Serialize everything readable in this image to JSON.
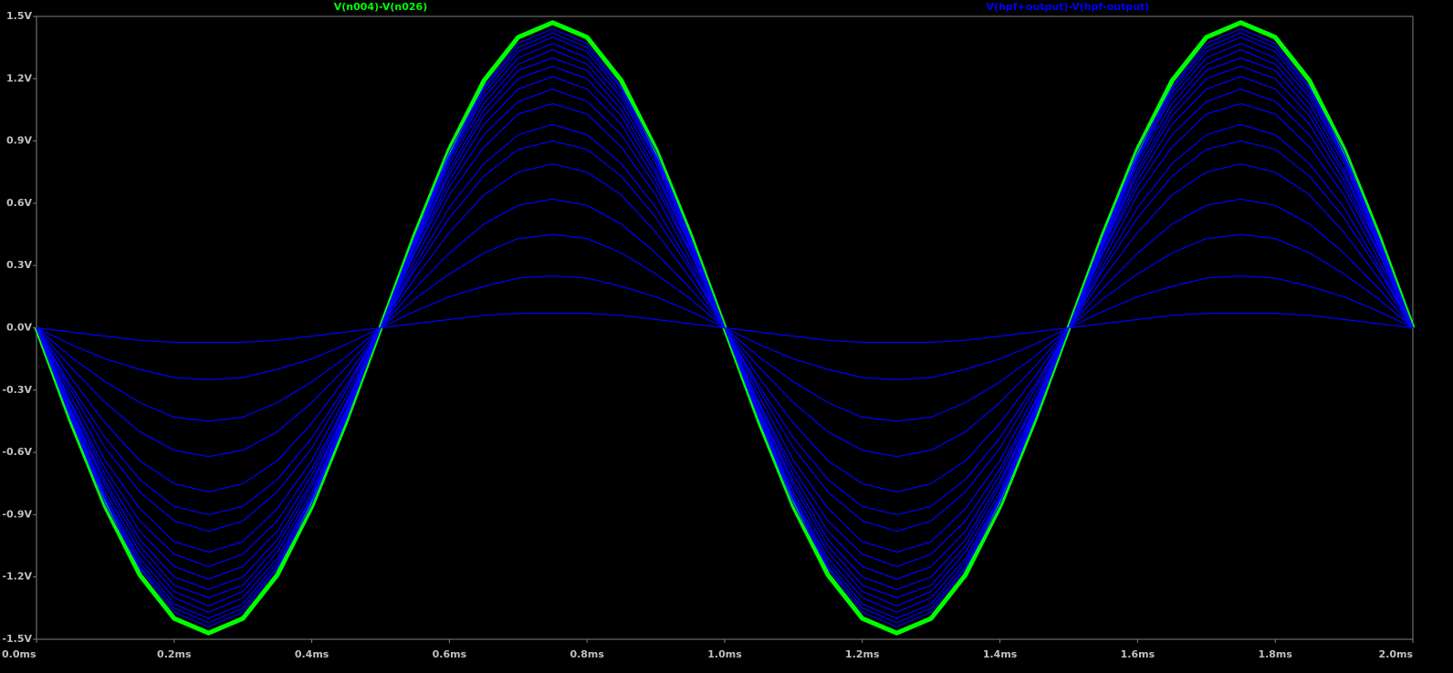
{
  "chart_data": {
    "type": "line",
    "x": [
      0,
      0.05,
      0.1,
      0.15,
      0.2,
      0.25,
      0.3,
      0.35,
      0.4,
      0.45,
      0.5,
      0.55,
      0.6,
      0.65,
      0.7,
      0.75,
      0.8,
      0.85,
      0.9,
      0.95,
      1.0,
      1.05,
      1.1,
      1.15,
      1.2,
      1.25,
      1.3,
      1.35,
      1.4,
      1.45,
      1.5,
      1.55,
      1.6,
      1.65,
      1.7,
      1.75,
      1.8,
      1.85,
      1.9,
      1.95,
      2.0
    ],
    "xlim": [
      0,
      2
    ],
    "xticks": [
      {
        "value": 0,
        "label": "0.0ms"
      },
      {
        "value": 0.2,
        "label": "0.2ms"
      },
      {
        "value": 0.4,
        "label": "0.4ms"
      },
      {
        "value": 0.6,
        "label": "0.6ms"
      },
      {
        "value": 0.8,
        "label": "0.8ms"
      },
      {
        "value": 1.0,
        "label": "1.0ms"
      },
      {
        "value": 1.2,
        "label": "1.2ms"
      },
      {
        "value": 1.4,
        "label": "1.4ms"
      },
      {
        "value": 1.6,
        "label": "1.6ms"
      },
      {
        "value": 1.8,
        "label": "1.8ms"
      },
      {
        "value": 2.0,
        "label": "2.0ms"
      }
    ],
    "ylim": [
      -1.5,
      1.5
    ],
    "yticks": [
      {
        "value": 1.5,
        "label": "1.5V"
      },
      {
        "value": 1.2,
        "label": "1.2V"
      },
      {
        "value": 0.9,
        "label": "0.9V"
      },
      {
        "value": 0.6,
        "label": "0.6V"
      },
      {
        "value": 0.3,
        "label": "0.3V"
      },
      {
        "value": 0,
        "label": "0.0V"
      },
      {
        "value": -0.3,
        "label": "-0.3V"
      },
      {
        "value": -0.6,
        "label": "-0.6V"
      },
      {
        "value": -0.9,
        "label": "-0.9V"
      },
      {
        "value": -1.2,
        "label": "-1.2V"
      },
      {
        "value": -1.5,
        "label": "-1.5V"
      }
    ],
    "series": [
      {
        "name": "V(n004)-V(n026)",
        "color": "#00ff00",
        "values": [
          0,
          -0.45,
          -0.86,
          -1.19,
          -1.4,
          -1.47,
          -1.4,
          -1.19,
          -0.86,
          -0.45,
          0,
          0.45,
          0.86,
          1.19,
          1.4,
          1.47,
          1.4,
          1.19,
          0.86,
          0.45,
          0,
          -0.45,
          -0.86,
          -1.19,
          -1.4,
          -1.47,
          -1.4,
          -1.19,
          -0.86,
          -0.45,
          0,
          0.45,
          0.86,
          1.19,
          1.4,
          1.47,
          1.4,
          1.19,
          0.86,
          0.45,
          0
        ]
      },
      {
        "name": "V(hpf+output)-V(hpf-output)",
        "color": "#0000ff",
        "runs": [
          [
            0,
            -0.44,
            -0.85,
            -1.16,
            -1.37,
            -1.44,
            -1.37,
            -1.16,
            -0.85,
            -0.44,
            0,
            0.44,
            0.85,
            1.16,
            1.37,
            1.44,
            1.37,
            1.16,
            0.85,
            0.44,
            0,
            -0.44,
            -0.85,
            -1.16,
            -1.37,
            -1.44,
            -1.37,
            -1.16,
            -0.85,
            -0.44,
            0,
            0.44,
            0.85,
            1.16,
            1.37,
            1.44,
            1.37,
            1.16,
            0.85,
            0.44,
            0
          ],
          [
            0,
            -0.44,
            -0.83,
            -1.15,
            -1.35,
            -1.42,
            -1.35,
            -1.15,
            -0.83,
            -0.44,
            0,
            0.44,
            0.83,
            1.15,
            1.35,
            1.42,
            1.35,
            1.15,
            0.83,
            0.44,
            0,
            -0.44,
            -0.83,
            -1.15,
            -1.35,
            -1.42,
            -1.35,
            -1.15,
            -0.83,
            -0.44,
            0,
            0.44,
            0.83,
            1.15,
            1.35,
            1.42,
            1.35,
            1.15,
            0.83,
            0.44,
            0
          ],
          [
            0,
            -0.43,
            -0.82,
            -1.13,
            -1.33,
            -1.4,
            -1.33,
            -1.13,
            -0.82,
            -0.43,
            0,
            0.43,
            0.82,
            1.13,
            1.33,
            1.4,
            1.33,
            1.13,
            0.82,
            0.43,
            0,
            -0.43,
            -0.82,
            -1.13,
            -1.33,
            -1.4,
            -1.33,
            -1.13,
            -0.82,
            -0.43,
            0,
            0.43,
            0.82,
            1.13,
            1.33,
            1.4,
            1.33,
            1.13,
            0.82,
            0.43,
            0
          ],
          [
            0,
            -0.42,
            -0.81,
            -1.11,
            -1.3,
            -1.37,
            -1.3,
            -1.11,
            -0.81,
            -0.42,
            0,
            0.42,
            0.81,
            1.11,
            1.3,
            1.37,
            1.3,
            1.11,
            0.81,
            0.42,
            0,
            -0.42,
            -0.81,
            -1.11,
            -1.3,
            -1.37,
            -1.3,
            -1.11,
            -0.81,
            -0.42,
            0,
            0.42,
            0.81,
            1.11,
            1.3,
            1.37,
            1.3,
            1.11,
            0.81,
            0.42,
            0
          ],
          [
            0,
            -0.41,
            -0.79,
            -1.08,
            -1.27,
            -1.34,
            -1.27,
            -1.08,
            -0.79,
            -0.41,
            0,
            0.41,
            0.79,
            1.08,
            1.27,
            1.34,
            1.27,
            1.08,
            0.79,
            0.41,
            0,
            -0.41,
            -0.79,
            -1.08,
            -1.27,
            -1.34,
            -1.27,
            -1.08,
            -0.79,
            -0.41,
            0,
            0.41,
            0.79,
            1.08,
            1.27,
            1.34,
            1.27,
            1.08,
            0.79,
            0.41,
            0
          ],
          [
            0,
            -0.4,
            -0.76,
            -1.05,
            -1.24,
            -1.3,
            -1.24,
            -1.05,
            -0.76,
            -0.4,
            0,
            0.4,
            0.76,
            1.05,
            1.24,
            1.3,
            1.24,
            1.05,
            0.76,
            0.4,
            0,
            -0.4,
            -0.76,
            -1.05,
            -1.24,
            -1.3,
            -1.24,
            -1.05,
            -0.76,
            -0.4,
            0,
            0.4,
            0.76,
            1.05,
            1.24,
            1.3,
            1.24,
            1.05,
            0.76,
            0.4,
            0
          ],
          [
            0,
            -0.39,
            -0.74,
            -1.02,
            -1.2,
            -1.26,
            -1.2,
            -1.02,
            -0.74,
            -0.39,
            0,
            0.39,
            0.74,
            1.02,
            1.2,
            1.26,
            1.2,
            1.02,
            0.74,
            0.39,
            0,
            -0.39,
            -0.74,
            -1.02,
            -1.2,
            -1.26,
            -1.2,
            -1.02,
            -0.74,
            -0.39,
            0,
            0.39,
            0.74,
            1.02,
            1.2,
            1.26,
            1.2,
            1.02,
            0.74,
            0.39,
            0
          ],
          [
            0,
            -0.37,
            -0.71,
            -0.98,
            -1.15,
            -1.21,
            -1.15,
            -0.98,
            -0.71,
            -0.37,
            0,
            0.37,
            0.71,
            0.98,
            1.15,
            1.21,
            1.15,
            0.98,
            0.71,
            0.37,
            0,
            -0.37,
            -0.71,
            -0.98,
            -1.15,
            -1.21,
            -1.15,
            -0.98,
            -0.71,
            -0.37,
            0,
            0.37,
            0.71,
            0.98,
            1.15,
            1.21,
            1.15,
            0.98,
            0.71,
            0.37,
            0
          ],
          [
            0,
            -0.36,
            -0.68,
            -0.93,
            -1.09,
            -1.15,
            -1.09,
            -0.93,
            -0.68,
            -0.36,
            0,
            0.36,
            0.68,
            0.93,
            1.09,
            1.15,
            1.09,
            0.93,
            0.68,
            0.36,
            0,
            -0.36,
            -0.68,
            -0.93,
            -1.09,
            -1.15,
            -1.09,
            -0.93,
            -0.68,
            -0.36,
            0,
            0.36,
            0.68,
            0.93,
            1.09,
            1.15,
            1.09,
            0.93,
            0.68,
            0.36,
            0
          ],
          [
            0,
            -0.33,
            -0.64,
            -0.87,
            -1.03,
            -1.08,
            -1.03,
            -0.87,
            -0.64,
            -0.33,
            0,
            0.33,
            0.64,
            0.87,
            1.03,
            1.08,
            1.03,
            0.87,
            0.64,
            0.33,
            0,
            -0.33,
            -0.64,
            -0.87,
            -1.03,
            -1.08,
            -1.03,
            -0.87,
            -0.64,
            -0.33,
            0,
            0.33,
            0.64,
            0.87,
            1.03,
            1.08,
            1.03,
            0.87,
            0.64,
            0.33,
            0
          ],
          [
            0,
            -0.3,
            -0.58,
            -0.79,
            -0.93,
            -0.98,
            -0.93,
            -0.79,
            -0.58,
            -0.3,
            0,
            0.3,
            0.58,
            0.79,
            0.93,
            0.98,
            0.93,
            0.79,
            0.58,
            0.3,
            0,
            -0.3,
            -0.58,
            -0.79,
            -0.93,
            -0.98,
            -0.93,
            -0.79,
            -0.58,
            -0.3,
            0,
            0.3,
            0.58,
            0.79,
            0.93,
            0.98,
            0.93,
            0.79,
            0.58,
            0.3,
            0
          ],
          [
            0,
            -0.28,
            -0.53,
            -0.73,
            -0.86,
            -0.9,
            -0.86,
            -0.73,
            -0.53,
            -0.28,
            0,
            0.28,
            0.53,
            0.73,
            0.86,
            0.9,
            0.86,
            0.73,
            0.53,
            0.28,
            0,
            -0.28,
            -0.53,
            -0.73,
            -0.86,
            -0.9,
            -0.86,
            -0.73,
            -0.53,
            -0.28,
            0,
            0.28,
            0.53,
            0.73,
            0.86,
            0.9,
            0.86,
            0.73,
            0.53,
            0.28,
            0
          ],
          [
            0,
            -0.24,
            -0.46,
            -0.64,
            -0.75,
            -0.79,
            -0.75,
            -0.64,
            -0.46,
            -0.24,
            0,
            0.24,
            0.46,
            0.64,
            0.75,
            0.79,
            0.75,
            0.64,
            0.46,
            0.24,
            0,
            -0.24,
            -0.46,
            -0.64,
            -0.75,
            -0.79,
            -0.75,
            -0.64,
            -0.46,
            -0.24,
            0,
            0.24,
            0.46,
            0.64,
            0.75,
            0.79,
            0.75,
            0.64,
            0.46,
            0.24,
            0
          ],
          [
            0,
            -0.19,
            -0.36,
            -0.5,
            -0.59,
            -0.62,
            -0.59,
            -0.5,
            -0.36,
            -0.19,
            0,
            0.19,
            0.36,
            0.5,
            0.59,
            0.62,
            0.59,
            0.5,
            0.36,
            0.19,
            0,
            -0.19,
            -0.36,
            -0.5,
            -0.59,
            -0.62,
            -0.59,
            -0.5,
            -0.36,
            -0.19,
            0,
            0.19,
            0.36,
            0.5,
            0.59,
            0.62,
            0.59,
            0.5,
            0.36,
            0.19,
            0
          ],
          [
            0,
            -0.14,
            -0.26,
            -0.36,
            -0.43,
            -0.45,
            -0.43,
            -0.36,
            -0.26,
            -0.14,
            0,
            0.14,
            0.26,
            0.36,
            0.43,
            0.45,
            0.43,
            0.36,
            0.26,
            0.14,
            0,
            -0.14,
            -0.26,
            -0.36,
            -0.43,
            -0.45,
            -0.43,
            -0.36,
            -0.26,
            -0.14,
            0,
            0.14,
            0.26,
            0.36,
            0.43,
            0.45,
            0.43,
            0.36,
            0.26,
            0.14,
            0
          ],
          [
            0,
            -0.08,
            -0.15,
            -0.2,
            -0.24,
            -0.25,
            -0.24,
            -0.2,
            -0.15,
            -0.08,
            0,
            0.08,
            0.15,
            0.2,
            0.24,
            0.25,
            0.24,
            0.2,
            0.15,
            0.08,
            0,
            -0.08,
            -0.15,
            -0.2,
            -0.24,
            -0.25,
            -0.24,
            -0.2,
            -0.15,
            -0.08,
            0,
            0.08,
            0.15,
            0.2,
            0.24,
            0.25,
            0.24,
            0.2,
            0.15,
            0.08,
            0
          ],
          [
            0,
            -0.02,
            -0.04,
            -0.06,
            -0.07,
            -0.07,
            -0.07,
            -0.06,
            -0.04,
            -0.02,
            0,
            0.02,
            0.04,
            0.06,
            0.07,
            0.07,
            0.07,
            0.06,
            0.04,
            0.02,
            0,
            -0.02,
            -0.04,
            -0.06,
            -0.07,
            -0.07,
            -0.07,
            -0.06,
            -0.04,
            -0.02,
            0,
            0.02,
            0.04,
            0.06,
            0.07,
            0.07,
            0.07,
            0.06,
            0.04,
            0.02,
            0
          ]
        ]
      }
    ]
  }
}
